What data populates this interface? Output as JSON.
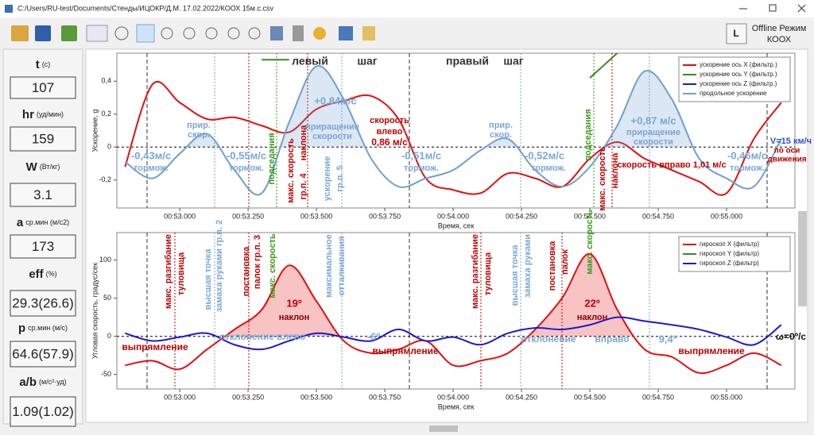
{
  "window_title": "C:/Users/RU-test/Documents/Стенды/ИЦОКР/Д.М. 17.02.2022/КООХ 15м.с.csv",
  "mode": {
    "button": "L",
    "line1": "Offline Режим",
    "line2": "КООХ"
  },
  "metrics": [
    {
      "label": "t",
      "unit": "(c)",
      "value": 107
    },
    {
      "label": "hr",
      "unit": "(уд/мин)",
      "value": 159
    },
    {
      "label": "W",
      "unit": "(Вт/кг)",
      "value": 3.1
    },
    {
      "label": "a",
      "unit": "ср.мин (м/с2)",
      "value": 173
    },
    {
      "label": "eff",
      "unit": "(%)",
      "value": "29.3(26.6)"
    },
    {
      "label": "p",
      "unit": "ср.мин (м/с)",
      "value": "64.6(57.9)"
    },
    {
      "label": "a/b",
      "unit": "(м/с²·уд)",
      "value": "1.09(1.02)"
    }
  ],
  "chart_data": [
    {
      "type": "line",
      "x_label": "Время, сек",
      "y_label": "Ускорение, g",
      "x": [
        52.8,
        52.9,
        53.0,
        53.1,
        53.2,
        53.3,
        53.4,
        53.5,
        53.6,
        53.7,
        53.8,
        53.9,
        54.0,
        54.1,
        54.2,
        54.3,
        54.4,
        54.5,
        54.6,
        54.7,
        54.8,
        54.9,
        55.0,
        55.1,
        55.2
      ],
      "series": [
        {
          "name": "ускорение ось X (фильтр.)",
          "color": "#e01010",
          "values": [
            -0.12,
            0.38,
            0.27,
            0.17,
            0.18,
            0.13,
            0.09,
            0.23,
            0.28,
            0.31,
            0.17,
            -0.19,
            -0.26,
            -0.28,
            -0.16,
            -0.19,
            -0.24,
            -0.07,
            0.03,
            -0.07,
            -0.14,
            -0.21,
            -0.28,
            0.05,
            0.27
          ]
        },
        {
          "name": "ускорение ось Y (фильтр.)",
          "color": "#3a8a1a",
          "values": [
            null,
            null,
            null,
            null,
            null,
            0.53,
            0.53,
            null,
            null,
            null,
            null,
            null,
            null,
            null,
            null,
            null,
            null,
            0.42,
            0.57,
            null,
            null,
            null,
            null,
            null,
            null
          ]
        },
        {
          "name": "ускорение ось Z (фильтр.)",
          "color": "#1a1ad0",
          "values": [
            null,
            null,
            null,
            null,
            null,
            null,
            null,
            null,
            null,
            null,
            null,
            null,
            null,
            null,
            null,
            null,
            null,
            null,
            null,
            null,
            null,
            null,
            null,
            null,
            null
          ]
        },
        {
          "name": "продольное ускорение",
          "color": "#6fa0d0",
          "fill_positive": true,
          "values": [
            -0.09,
            -0.19,
            -0.04,
            0.08,
            -0.14,
            -0.28,
            0.15,
            0.49,
            0.29,
            -0.07,
            -0.24,
            -0.19,
            -0.14,
            -0.02,
            0.05,
            -0.14,
            -0.24,
            -0.12,
            0.13,
            0.46,
            0.29,
            -0.07,
            -0.19,
            -0.24,
            0.05
          ]
        }
      ],
      "xlim": [
        52.77,
        55.25
      ],
      "xticks": [
        {
          "value": 53.0,
          "label": "00:53.000"
        },
        {
          "value": 53.25,
          "label": "00:53.250"
        },
        {
          "value": 53.5,
          "label": "00:53.500"
        },
        {
          "value": 53.75,
          "label": "00:53.750"
        },
        {
          "value": 54.0,
          "label": "00:54.000"
        },
        {
          "value": 54.25,
          "label": "00:54.250"
        },
        {
          "value": 54.5,
          "label": "00:54.500"
        },
        {
          "value": 54.75,
          "label": "00:54.750"
        },
        {
          "value": 55.0,
          "label": "00:55.000"
        }
      ],
      "ylim": [
        -0.37,
        0.57
      ],
      "yticks": [
        {
          "value": -0.2,
          "label": "-0,2"
        },
        0,
        {
          "value": 0.2,
          "label": "0,2"
        },
        {
          "value": 0.4,
          "label": "0,4"
        }
      ],
      "grid": false,
      "legend": "upper right",
      "annotations": [
        "левый",
        "шаг",
        "правый",
        "шаг",
        "-0,43м/с",
        "тормож.",
        "прир.",
        "скор.",
        "-0,55м/с",
        "тормож.",
        "+0,84м/с",
        "приращение",
        "скорости",
        "скорость",
        "влево",
        "0,86 м/с",
        "-0,51м/с",
        "тормож.",
        "прир.",
        "скор.",
        "-0,52м/с",
        "тормож.",
        "+0,87 м/с",
        "приращение",
        "скорости",
        "скорость вправо 1,01 м/с",
        "-0,46м/с",
        "тормож.",
        "V=15 км/ч",
        "по оси",
        "движения",
        "подседания",
        "макс. скорость",
        "наклона",
        "гр.п. 4",
        "ускорение",
        "гр.п. 5",
        "подседания",
        "макс. скорость",
        "наклона"
      ]
    },
    {
      "type": "line",
      "x_label": "Время, сек",
      "y_label": "Угловая скорость, градус/сек",
      "x": [
        52.8,
        52.9,
        53.0,
        53.1,
        53.2,
        53.3,
        53.4,
        53.5,
        53.6,
        53.7,
        53.8,
        53.9,
        54.0,
        54.1,
        54.2,
        54.3,
        54.4,
        54.5,
        54.6,
        54.7,
        54.8,
        54.9,
        55.0,
        55.1,
        55.2
      ],
      "series": [
        {
          "name": "гироскоп X (фильтр)",
          "color": "#e01010",
          "fill_positive": true,
          "values": [
            -38,
            -32,
            -43,
            -17,
            9,
            35,
            93,
            46,
            -6,
            -22,
            -17,
            -6,
            -38,
            -32,
            -22,
            9,
            51,
            108,
            35,
            -17,
            -27,
            -48,
            -38,
            -22,
            -38
          ]
        },
        {
          "name": "гироскоп Y (фильтр)",
          "color": "#3a8a1a",
          "values": [
            null,
            null,
            null,
            null,
            null,
            null,
            null,
            null,
            null,
            null,
            null,
            null,
            null,
            null,
            null,
            null,
            null,
            null,
            null,
            null,
            null,
            null,
            null,
            null,
            null
          ]
        },
        {
          "name": "гироскоп Z (фильтр)",
          "color": "#1a1ad0",
          "values": [
            4,
            -6,
            -1,
            4,
            -11,
            -17,
            -6,
            4,
            -1,
            -6,
            9,
            -6,
            -1,
            -11,
            4,
            11,
            9,
            15,
            25,
            20,
            15,
            9,
            -1,
            -11,
            15
          ]
        }
      ],
      "xlim": [
        52.77,
        55.25
      ],
      "xticks": [
        {
          "value": 53.0,
          "label": "00:53.000"
        },
        {
          "value": 53.25,
          "label": "00:53.250"
        },
        {
          "value": 53.5,
          "label": "00:53.500"
        },
        {
          "value": 53.75,
          "label": "00:53.750"
        },
        {
          "value": 54.0,
          "label": "00:54.000"
        },
        {
          "value": 54.25,
          "label": "00:54.250"
        },
        {
          "value": 54.5,
          "label": "00:54.500"
        },
        {
          "value": 54.75,
          "label": "00:54.750"
        },
        {
          "value": 55.0,
          "label": "00:55.000"
        }
      ],
      "ylim": [
        -69,
        136
      ],
      "yticks": [
        -50,
        0,
        50,
        100
      ],
      "grid": false,
      "legend": "upper right",
      "annotations": [
        "макс. разгибание",
        "туловища",
        "высшая точка",
        "замаха руками гр.п. 2",
        "постановка",
        "палок гр.п. 3",
        "макс. скорость",
        "максимальное",
        "отталкивания",
        "19º",
        "наклон",
        "выпрямление",
        "отклонение влево",
        "-6º",
        "выпрямление",
        "макс. разгибание",
        "туловища",
        "высшая точка",
        "замаха руками",
        "постановка",
        "палок",
        "макс. скорость",
        "22º",
        "наклон",
        "отклонение",
        "вправо",
        "9,4º",
        "выпрямление",
        "ω=0º/c"
      ]
    }
  ]
}
